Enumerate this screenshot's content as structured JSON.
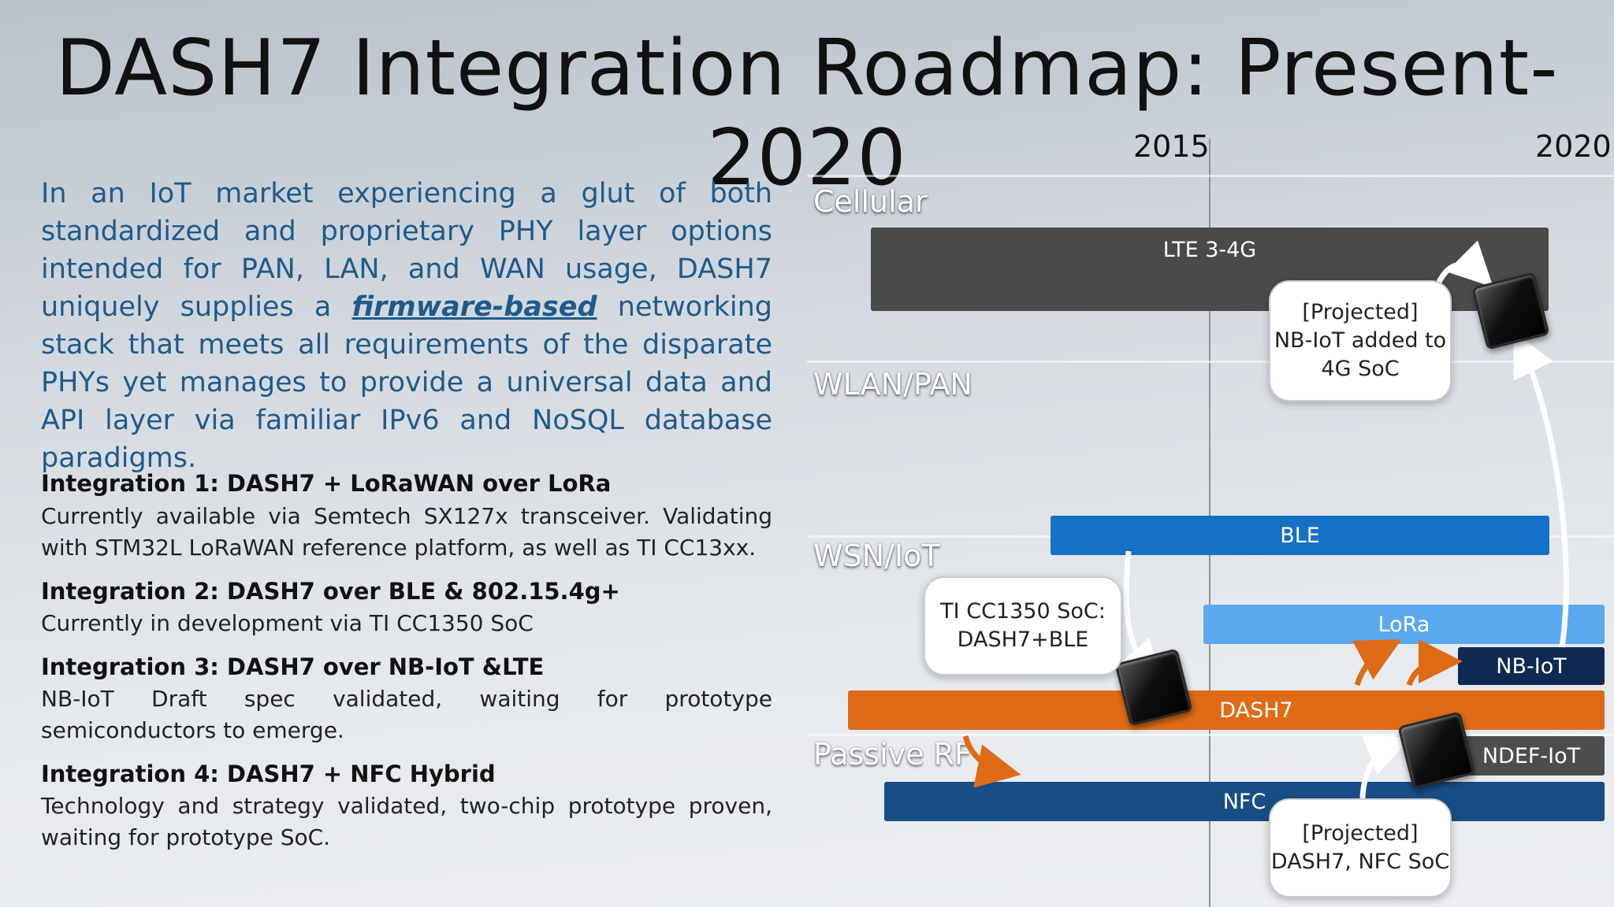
{
  "title": "DASH7 Integration Roadmap: Present-2020",
  "intro": {
    "part1": "In an IoT market experiencing a glut of both standardized and proprietary PHY layer options intended for PAN, LAN, and WAN usage, DASH7 uniquely supplies a ",
    "emphasis": "firmware-based",
    "part2": " networking stack that meets all requirements of the disparate PHYs yet manages to provide a universal data and API layer via familiar IPv6 and NoSQL database paradigms."
  },
  "integrations": [
    {
      "heading": "Integration 1:  DASH7 + LoRaWAN over LoRa",
      "body": "Currently available via Semtech SX127x transceiver.  Validating with STM32L LoRaWAN reference platform, as well as TI CC13xx."
    },
    {
      "heading": "Integration 2: DASH7 over BLE & 802.15.4g+",
      "body": "Currently in development via TI CC1350 SoC"
    },
    {
      "heading": "Integration 3: DASH7 over NB-IoT &LTE",
      "body": "NB-IoT Draft spec validated, waiting for prototype semiconductors to emerge."
    },
    {
      "heading": "Integration 4: DASH7 + NFC Hybrid",
      "body": "Technology and strategy validated, two-chip prototype proven, waiting for prototype SoC."
    }
  ],
  "timeline": {
    "years": [
      "2015",
      "2020"
    ],
    "categories": [
      "Cellular",
      "WLAN/PAN",
      "WSN/IoT",
      "Passive RF"
    ],
    "bars": {
      "lte": {
        "label": "LTE 3-4G",
        "color": "#4a4a4b"
      },
      "ble": {
        "label": "BLE",
        "color": "#1570c6"
      },
      "lora": {
        "label": "LoRa",
        "color": "#5aa9ee"
      },
      "nbiot": {
        "label": "NB-IoT",
        "color": "#0f2a52"
      },
      "dash7": {
        "label": "DASH7",
        "color": "#e06b17"
      },
      "ndef": {
        "label": "NDEF-IoT",
        "color": "#4d4d4f"
      },
      "nfc": {
        "label": "NFC",
        "color": "#184e86"
      }
    },
    "callouts": {
      "nbiot_soc": [
        "[Projected]",
        "NB-IoT added to",
        "4G SoC"
      ],
      "cc1350": [
        "TI CC1350 SoC:",
        "DASH7+BLE"
      ],
      "nfc_soc": [
        "[Projected]",
        "DASH7, NFC SoC"
      ]
    }
  }
}
